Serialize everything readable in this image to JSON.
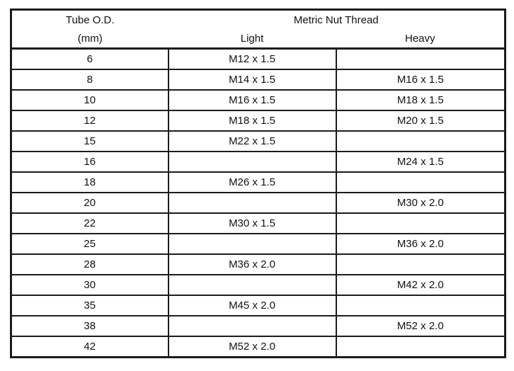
{
  "table": {
    "header": {
      "col1_title": "Tube O.D.",
      "col1_subtitle": "(mm)",
      "group_title": "Metric Nut Thread",
      "sub_columns": [
        "Light",
        "Heavy"
      ]
    },
    "rows": [
      {
        "od": "6",
        "light": "M12 x 1.5",
        "heavy": ""
      },
      {
        "od": "8",
        "light": "M14 x 1.5",
        "heavy": "M16 x 1.5"
      },
      {
        "od": "10",
        "light": "M16 x 1.5",
        "heavy": "M18 x 1.5"
      },
      {
        "od": "12",
        "light": "M18 x 1.5",
        "heavy": "M20 x 1.5"
      },
      {
        "od": "15",
        "light": "M22 x 1.5",
        "heavy": ""
      },
      {
        "od": "16",
        "light": "",
        "heavy": "M24 x 1.5"
      },
      {
        "od": "18",
        "light": "M26 x 1.5",
        "heavy": ""
      },
      {
        "od": "20",
        "light": "",
        "heavy": "M30 x 2.0"
      },
      {
        "od": "22",
        "light": "M30 x 1.5",
        "heavy": ""
      },
      {
        "od": "25",
        "light": "",
        "heavy": "M36 x 2.0"
      },
      {
        "od": "28",
        "light": "M36 x 2.0",
        "heavy": ""
      },
      {
        "od": "30",
        "light": "",
        "heavy": "M42 x 2.0"
      },
      {
        "od": "35",
        "light": "M45 x 2.0",
        "heavy": ""
      },
      {
        "od": "38",
        "light": "",
        "heavy": "M52 x 2.0"
      },
      {
        "od": "42",
        "light": "M52 x 2.0",
        "heavy": ""
      }
    ]
  },
  "colors": {
    "border": "#1c1c1c",
    "text": "#111111",
    "background": "#ffffff"
  }
}
